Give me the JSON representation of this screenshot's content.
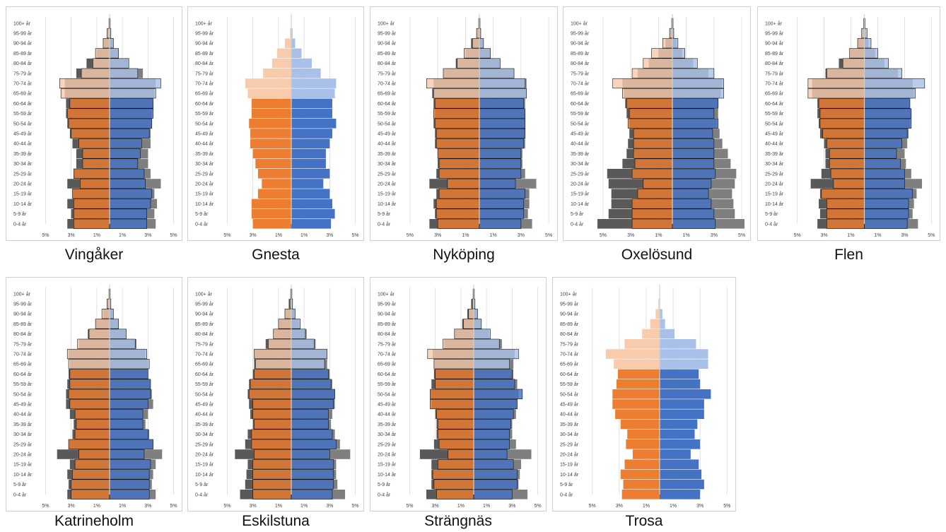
{
  "age_groups": [
    "0-4 år",
    "5-9 år",
    "10-14 år",
    "15-19 år",
    "20-24 år",
    "25-29 år",
    "30-34 år",
    "35-39 år",
    "40-44 år",
    "45-49 år",
    "50-54 år",
    "55-59 år",
    "60-64 år",
    "65-69 år",
    "70-74 år",
    "75-79 år",
    "80-84 år",
    "85-89 år",
    "90-94 år",
    "95-99 år",
    "100+ år"
  ],
  "x_ticks": [
    "5%",
    "3%",
    "1%",
    "1%",
    "3%",
    "5%"
  ],
  "colors": {
    "female_young": "#ed7d31",
    "female_old": "#f8cbad",
    "male_young": "#4472c4",
    "male_old": "#a9c1e8",
    "reference_dark": "#595959",
    "reference_light": "#7f7f7f",
    "frame": "#cfcfcf",
    "grid": "#d9d9d9"
  },
  "chart_data": [
    {
      "type": "bar",
      "title": "Vingåker",
      "female": [
        2.8,
        2.8,
        2.8,
        2.9,
        2.3,
        2.8,
        2.1,
        2.1,
        2.4,
        3.0,
        3.2,
        3.3,
        3.1,
        3.8,
        3.9,
        2.2,
        1.3,
        1.1,
        0.5,
        0.2,
        0.05
      ],
      "male": [
        2.9,
        2.9,
        3.2,
        3.3,
        2.8,
        2.7,
        2.2,
        2.4,
        2.5,
        3.1,
        3.3,
        3.4,
        3.4,
        3.6,
        4.0,
        2.2,
        1.5,
        0.7,
        0.3,
        0.1,
        0.05
      ],
      "reference_female": [
        3.3,
        3.0,
        3.3,
        2.9,
        3.3,
        2.8,
        2.6,
        2.6,
        2.9,
        3.1,
        3.3,
        3.4,
        3.4,
        3.5,
        3.5,
        2.6,
        1.8,
        1.0,
        0.5,
        0.2,
        0.05
      ],
      "reference_male": [
        3.6,
        3.5,
        3.7,
        3.5,
        4.0,
        3.2,
        3.0,
        3.0,
        3.2,
        3.2,
        3.3,
        3.3,
        3.4,
        3.5,
        3.6,
        2.6,
        1.5,
        0.7,
        0.3,
        0.1,
        0.05
      ]
    },
    {
      "type": "bar",
      "title": "Gnesta",
      "female": [
        3.0,
        3.1,
        3.1,
        2.6,
        2.3,
        2.6,
        2.8,
        3.0,
        3.2,
        3.2,
        3.3,
        3.1,
        3.1,
        3.4,
        3.6,
        2.2,
        1.5,
        1.1,
        0.5,
        0.1,
        0.0
      ],
      "male": [
        3.1,
        3.4,
        3.2,
        3.0,
        2.5,
        3.0,
        2.7,
        2.7,
        3.0,
        3.2,
        3.5,
        3.2,
        3.2,
        3.4,
        3.5,
        2.3,
        1.6,
        0.8,
        0.3,
        0.1,
        0.0
      ],
      "reference_female": [],
      "reference_male": []
    },
    {
      "type": "bar",
      "title": "Nyköping",
      "female": [
        3.0,
        3.1,
        3.1,
        2.9,
        2.3,
        2.9,
        2.9,
        3.0,
        3.1,
        3.1,
        3.2,
        3.3,
        3.2,
        3.3,
        3.8,
        2.6,
        1.6,
        1.1,
        0.5,
        0.2,
        0.05
      ],
      "male": [
        3.0,
        3.2,
        3.2,
        3.3,
        2.6,
        3.0,
        3.0,
        3.0,
        3.2,
        3.3,
        3.3,
        3.3,
        3.2,
        3.4,
        3.3,
        2.5,
        1.5,
        0.8,
        0.3,
        0.1,
        0.05
      ],
      "reference_female": [
        3.6,
        3.2,
        3.3,
        3.1,
        3.6,
        3.1,
        3.0,
        3.0,
        3.2,
        3.2,
        3.3,
        3.2,
        3.3,
        3.4,
        3.3,
        2.6,
        1.7,
        1.0,
        0.6,
        0.2,
        0.05
      ],
      "reference_male": [
        3.8,
        3.5,
        3.6,
        3.6,
        4.1,
        3.3,
        3.1,
        3.1,
        3.3,
        3.3,
        3.3,
        3.3,
        3.3,
        3.4,
        3.4,
        2.5,
        1.5,
        0.8,
        0.3,
        0.1,
        0.05
      ]
    },
    {
      "type": "bar",
      "title": "Oxelösund",
      "female": [
        2.9,
        2.9,
        2.9,
        2.5,
        2.1,
        2.9,
        2.7,
        2.8,
        2.8,
        2.8,
        3.2,
        3.1,
        3.3,
        3.6,
        4.3,
        2.9,
        2.1,
        1.5,
        0.7,
        0.2,
        0.05
      ],
      "male": [
        3.1,
        3.0,
        2.8,
        2.6,
        2.8,
        3.1,
        3.0,
        3.0,
        3.0,
        2.9,
        3.3,
        3.0,
        3.3,
        3.7,
        3.7,
        3.0,
        1.8,
        0.9,
        0.4,
        0.1,
        0.05
      ],
      "reference_female": [
        5.4,
        4.6,
        4.4,
        4.4,
        4.6,
        4.7,
        3.6,
        3.3,
        3.2,
        3.1,
        3.1,
        3.3,
        3.4,
        3.5,
        3.6,
        2.5,
        1.7,
        1.0,
        0.5,
        0.2,
        0.05
      ],
      "reference_male": [
        5.2,
        4.5,
        4.4,
        4.3,
        4.5,
        4.6,
        4.2,
        4.0,
        3.6,
        3.4,
        3.2,
        3.3,
        3.3,
        3.5,
        3.6,
        2.6,
        1.5,
        0.7,
        0.3,
        0.1,
        0.05
      ]
    },
    {
      "type": "bar",
      "title": "Flen",
      "female": [
        2.8,
        2.8,
        2.8,
        3.2,
        2.3,
        2.5,
        2.6,
        2.6,
        2.8,
        3.1,
        3.3,
        3.3,
        3.4,
        4.2,
        4.2,
        2.8,
        1.6,
        1.1,
        0.5,
        0.2,
        0.05
      ],
      "male": [
        3.2,
        3.3,
        3.3,
        3.6,
        3.0,
        3.0,
        2.7,
        2.4,
        2.8,
        3.2,
        3.5,
        3.5,
        3.4,
        3.8,
        4.5,
        2.8,
        1.8,
        1.0,
        0.5,
        0.2,
        0.05
      ],
      "reference_female": [
        3.5,
        3.3,
        3.4,
        3.3,
        4.0,
        3.2,
        2.9,
        2.9,
        3.0,
        3.3,
        3.4,
        3.5,
        3.5,
        3.9,
        3.9,
        2.9,
        1.9,
        1.1,
        0.5,
        0.2,
        0.05
      ],
      "reference_male": [
        4.0,
        3.6,
        3.7,
        3.9,
        4.3,
        3.5,
        3.1,
        3.0,
        3.2,
        3.3,
        3.4,
        3.5,
        3.4,
        3.7,
        3.6,
        2.5,
        1.5,
        0.8,
        0.3,
        0.1,
        0.05
      ]
    },
    {
      "type": "bar",
      "title": "Katrineholm",
      "female": [
        3.0,
        3.0,
        2.9,
        2.7,
        2.4,
        3.2,
        2.7,
        2.6,
        2.7,
        3.1,
        3.2,
        3.1,
        3.1,
        3.2,
        3.3,
        2.5,
        1.6,
        1.1,
        0.6,
        0.2,
        0.05
      ],
      "male": [
        3.1,
        3.1,
        3.1,
        3.2,
        2.7,
        3.4,
        3.0,
        2.6,
        2.6,
        3.0,
        3.2,
        3.2,
        3.0,
        3.1,
        2.9,
        2.0,
        1.3,
        0.7,
        0.3,
        0.1,
        0.05
      ],
      "reference_female": [
        3.3,
        3.2,
        3.3,
        3.1,
        4.1,
        3.2,
        2.9,
        2.8,
        3.1,
        3.4,
        3.4,
        3.3,
        3.2,
        3.1,
        3.2,
        2.4,
        1.7,
        1.1,
        0.5,
        0.2,
        0.05
      ],
      "reference_male": [
        3.6,
        3.3,
        3.4,
        3.6,
        4.1,
        3.4,
        3.1,
        2.8,
        3.0,
        3.4,
        3.3,
        3.2,
        3.0,
        3.0,
        2.8,
        2.1,
        1.3,
        0.7,
        0.3,
        0.1,
        0.05
      ]
    },
    {
      "type": "bar",
      "title": "Eskilstuna",
      "female": [
        3.0,
        3.0,
        3.0,
        3.0,
        2.9,
        3.1,
        3.1,
        2.9,
        3.0,
        3.0,
        3.3,
        3.2,
        2.9,
        2.8,
        2.9,
        1.8,
        1.4,
        1.0,
        0.5,
        0.1,
        0.05
      ],
      "male": [
        3.2,
        3.3,
        3.3,
        3.3,
        3.0,
        3.5,
        3.2,
        2.9,
        2.9,
        3.3,
        3.4,
        3.1,
        2.9,
        2.6,
        2.8,
        1.8,
        1.1,
        0.7,
        0.3,
        0.1,
        0.05
      ],
      "reference_female": [
        4.0,
        3.6,
        3.5,
        3.4,
        4.4,
        3.6,
        3.4,
        3.0,
        3.2,
        3.3,
        3.4,
        3.3,
        3.0,
        2.9,
        2.9,
        2.0,
        1.4,
        1.0,
        0.5,
        0.2,
        0.05
      ],
      "reference_male": [
        4.2,
        3.6,
        3.5,
        3.5,
        4.6,
        3.8,
        3.4,
        3.1,
        3.2,
        3.4,
        3.4,
        3.2,
        3.0,
        2.8,
        2.8,
        1.9,
        1.2,
        0.6,
        0.3,
        0.1,
        0.05
      ]
    },
    {
      "type": "bar",
      "title": "Strängnäs",
      "female": [
        2.9,
        3.1,
        3.2,
        2.8,
        2.0,
        2.7,
        2.8,
        2.8,
        2.9,
        3.4,
        3.4,
        3.0,
        3.0,
        3.1,
        3.6,
        2.4,
        1.5,
        0.8,
        0.4,
        0.1,
        0.05
      ],
      "male": [
        3.0,
        3.4,
        3.4,
        3.1,
        2.6,
        2.8,
        2.8,
        2.9,
        3.1,
        3.4,
        3.8,
        3.2,
        3.0,
        2.8,
        3.5,
        2.0,
        1.3,
        0.6,
        0.3,
        0.1,
        0.05
      ],
      "reference_female": [
        3.7,
        3.3,
        3.3,
        3.3,
        4.2,
        3.1,
        2.9,
        2.9,
        3.0,
        3.3,
        3.4,
        3.3,
        3.1,
        3.1,
        3.2,
        2.3,
        1.5,
        0.9,
        0.5,
        0.2,
        0.05
      ],
      "reference_male": [
        4.2,
        3.5,
        3.6,
        3.7,
        4.5,
        3.3,
        3.0,
        3.0,
        3.3,
        3.4,
        3.5,
        3.4,
        3.1,
        3.1,
        3.2,
        2.2,
        1.2,
        0.6,
        0.3,
        0.1,
        0.05
      ]
    },
    {
      "type": "bar",
      "title": "Trosa",
      "female": [
        2.8,
        2.7,
        2.9,
        2.6,
        2.0,
        2.5,
        2.4,
        2.9,
        3.3,
        3.5,
        3.5,
        3.2,
        3.1,
        3.4,
        4.0,
        2.6,
        1.3,
        0.7,
        0.3,
        0.1,
        0.0
      ],
      "male": [
        3.0,
        3.3,
        3.1,
        2.9,
        2.3,
        3.0,
        2.6,
        2.8,
        3.3,
        3.3,
        3.8,
        3.0,
        2.9,
        3.6,
        3.6,
        2.7,
        1.1,
        0.4,
        0.2,
        0.0,
        0.0
      ],
      "reference_female": [],
      "reference_male": []
    }
  ]
}
